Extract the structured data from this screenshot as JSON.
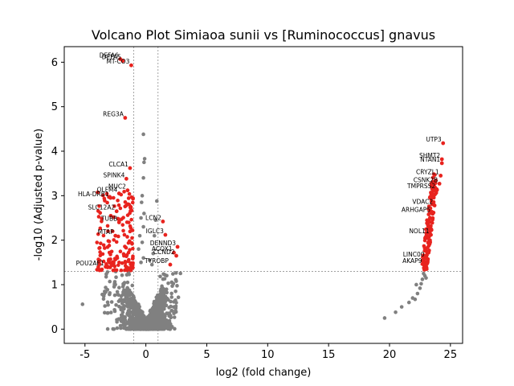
{
  "chart_data": {
    "type": "scatter",
    "title": "Volcano Plot Simiaoa sunii vs [Ruminococcus] gnavus",
    "xlabel": "log2 (fold change)",
    "ylabel": "-log10 (Adjusted p-value)",
    "xlim": [
      -6.7,
      26.0
    ],
    "ylim": [
      -0.32,
      6.35
    ],
    "xticks": [
      -5,
      0,
      5,
      10,
      15,
      20,
      25
    ],
    "yticks": [
      0,
      1,
      2,
      3,
      4,
      5,
      6
    ],
    "grid": false,
    "colors": {
      "significant": "#e8231e",
      "nonsignificant": "#808080",
      "threshold": "#808080"
    },
    "thresholds": {
      "x": [
        -1,
        1
      ],
      "y": 1.3
    },
    "labeled_points": [
      {
        "label": "DEFA6",
        "x": -2.1,
        "y": 6.07
      },
      {
        "label": "DEFA5",
        "x": -1.9,
        "y": 6.03
      },
      {
        "label": "MT-CO3",
        "x": -1.2,
        "y": 5.93
      },
      {
        "label": "REG3A",
        "x": -1.7,
        "y": 4.75
      },
      {
        "label": "CLCA1",
        "x": -1.3,
        "y": 3.62
      },
      {
        "label": "SPINK4",
        "x": -1.6,
        "y": 3.38
      },
      {
        "label": "MUC2",
        "x": -1.5,
        "y": 3.12
      },
      {
        "label": "OLFM4",
        "x": -2.2,
        "y": 3.05
      },
      {
        "label": "HLA-DRB1",
        "x": -2.9,
        "y": 2.95
      },
      {
        "label": "SLC12A2",
        "x": -2.4,
        "y": 2.65
      },
      {
        "label": "TUBB",
        "x": -2.2,
        "y": 2.4
      },
      {
        "label": "MTAP",
        "x": -2.5,
        "y": 2.1
      },
      {
        "label": "LCN2",
        "x": 1.4,
        "y": 2.42
      },
      {
        "label": "IGLC3",
        "x": 1.6,
        "y": 2.12
      },
      {
        "label": "DENND3",
        "x": 2.6,
        "y": 1.85
      },
      {
        "label": "ACOX1",
        "x": 2.3,
        "y": 1.72
      },
      {
        "label": "CCND2",
        "x": 2.5,
        "y": 1.65
      },
      {
        "label": "TYROBP",
        "x": 2.0,
        "y": 1.45
      },
      {
        "label": "POU2AF1",
        "x": -3.3,
        "y": 1.4
      },
      {
        "label": "UTP3",
        "x": 24.4,
        "y": 4.18
      },
      {
        "label": "SHMT2",
        "x": 24.3,
        "y": 3.82
      },
      {
        "label": "NTAN1",
        "x": 24.3,
        "y": 3.73
      },
      {
        "label": "CRYZL1",
        "x": 24.2,
        "y": 3.45
      },
      {
        "label": "CSNK2B",
        "x": 24.1,
        "y": 3.27
      },
      {
        "label": "TMPRSS2",
        "x": 23.9,
        "y": 3.13
      },
      {
        "label": "VDAC2",
        "x": 23.7,
        "y": 2.78
      },
      {
        "label": "ARHGAP5",
        "x": 23.5,
        "y": 2.6
      },
      {
        "label": "NOL11",
        "x": 23.4,
        "y": 2.12
      },
      {
        "label": "LINC00",
        "x": 23.0,
        "y": 1.6
      },
      {
        "label": "AKAP9",
        "x": 22.8,
        "y": 1.45
      }
    ]
  }
}
